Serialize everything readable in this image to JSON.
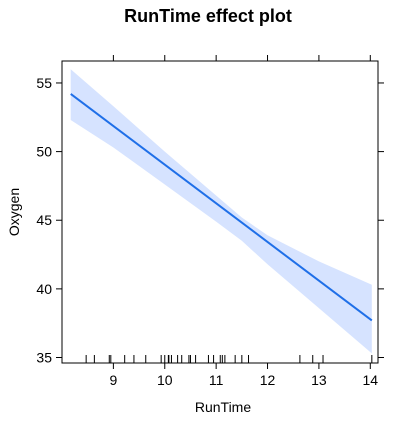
{
  "chart_data": {
    "type": "line",
    "title": "RunTime effect plot",
    "xlabel": "RunTime",
    "ylabel": "Oxygen",
    "xlim": [
      8.0,
      14.15
    ],
    "ylim": [
      34.6,
      56.6
    ],
    "x_ticks": [
      9,
      10,
      11,
      12,
      13,
      14
    ],
    "y_ticks": [
      35,
      40,
      45,
      50,
      55
    ],
    "grid": false,
    "legend": "none",
    "colors": {
      "line": "#1f6fe8",
      "band": "#d6e3ff",
      "frame": "#000000"
    },
    "fit_line": {
      "x": [
        8.17,
        14.03
      ],
      "y": [
        54.2,
        37.7
      ]
    },
    "confidence_band": {
      "x": [
        8.17,
        9.0,
        10.0,
        11.0,
        11.5,
        12.0,
        13.0,
        14.03
      ],
      "upper": [
        56.0,
        53.3,
        50.0,
        46.8,
        45.2,
        43.9,
        42.0,
        40.3
      ],
      "lower": [
        52.3,
        50.3,
        47.6,
        44.9,
        43.5,
        41.8,
        38.6,
        35.3
      ]
    },
    "rug": [
      8.47,
      8.63,
      8.92,
      8.95,
      9.22,
      9.4,
      9.63,
      9.93,
      10.0,
      10.07,
      10.08,
      10.13,
      10.25,
      10.33,
      10.47,
      10.5,
      10.6,
      10.85,
      10.95,
      11.08,
      11.12,
      11.17,
      11.37,
      11.5,
      11.63,
      12.63,
      12.88,
      13.08,
      14.03
    ]
  }
}
